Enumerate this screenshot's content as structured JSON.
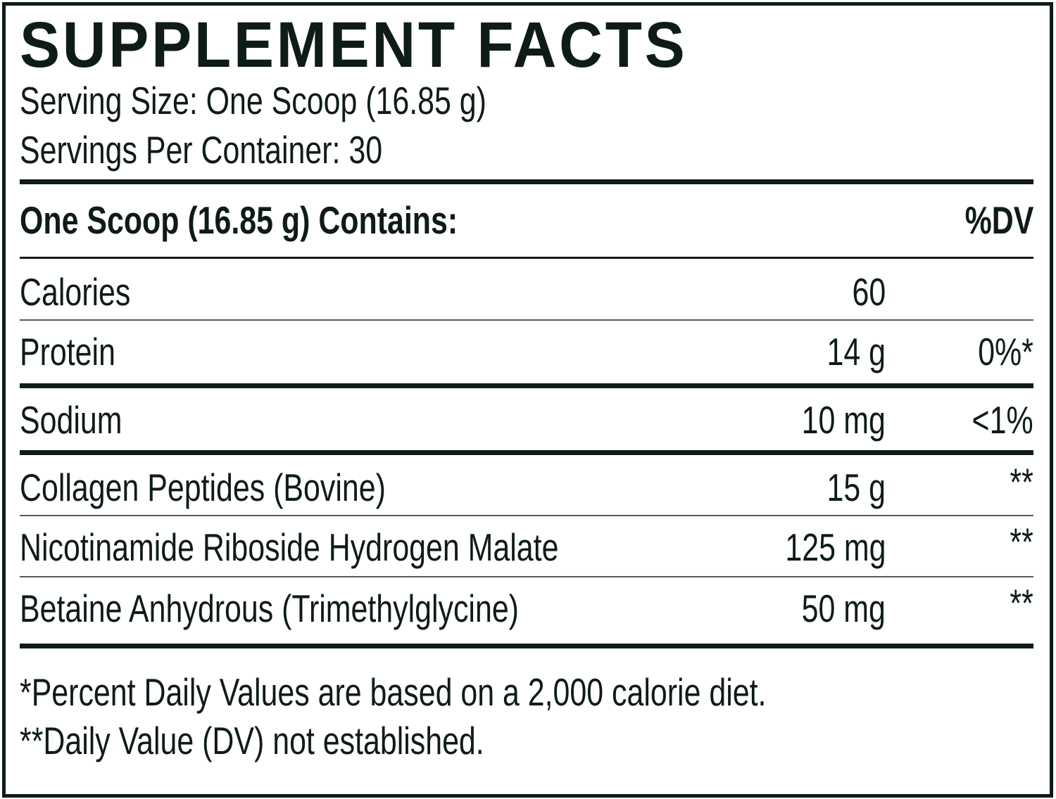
{
  "title": "SUPPLEMENT FACTS",
  "serving_size": "Serving Size: One Scoop (16.85 g)",
  "servings_per_container": "Servings Per Container: 30",
  "header": {
    "contains": "One Scoop (16.85 g) Contains:",
    "dv": "%DV"
  },
  "rows": [
    {
      "name": "Calories",
      "amount": "60",
      "dv": ""
    },
    {
      "name": "Protein",
      "amount": "14 g",
      "dv": "0%*"
    },
    {
      "name": "Sodium",
      "amount": "10 mg",
      "dv": "<1%"
    },
    {
      "name": "Collagen Peptides (Bovine)",
      "amount": "15 g",
      "dv": "**"
    },
    {
      "name": "Nicotinamide Riboside Hydrogen Malate",
      "amount": "125 mg",
      "dv": "**"
    },
    {
      "name": "Betaine Anhydrous (Trimethylglycine)",
      "amount": "50 mg",
      "dv": "**"
    }
  ],
  "footnotes": [
    "*Percent Daily Values are based on a 2,000 calorie diet.",
    "**Daily Value (DV) not established."
  ],
  "colors": {
    "ink": "#0f1c15"
  }
}
